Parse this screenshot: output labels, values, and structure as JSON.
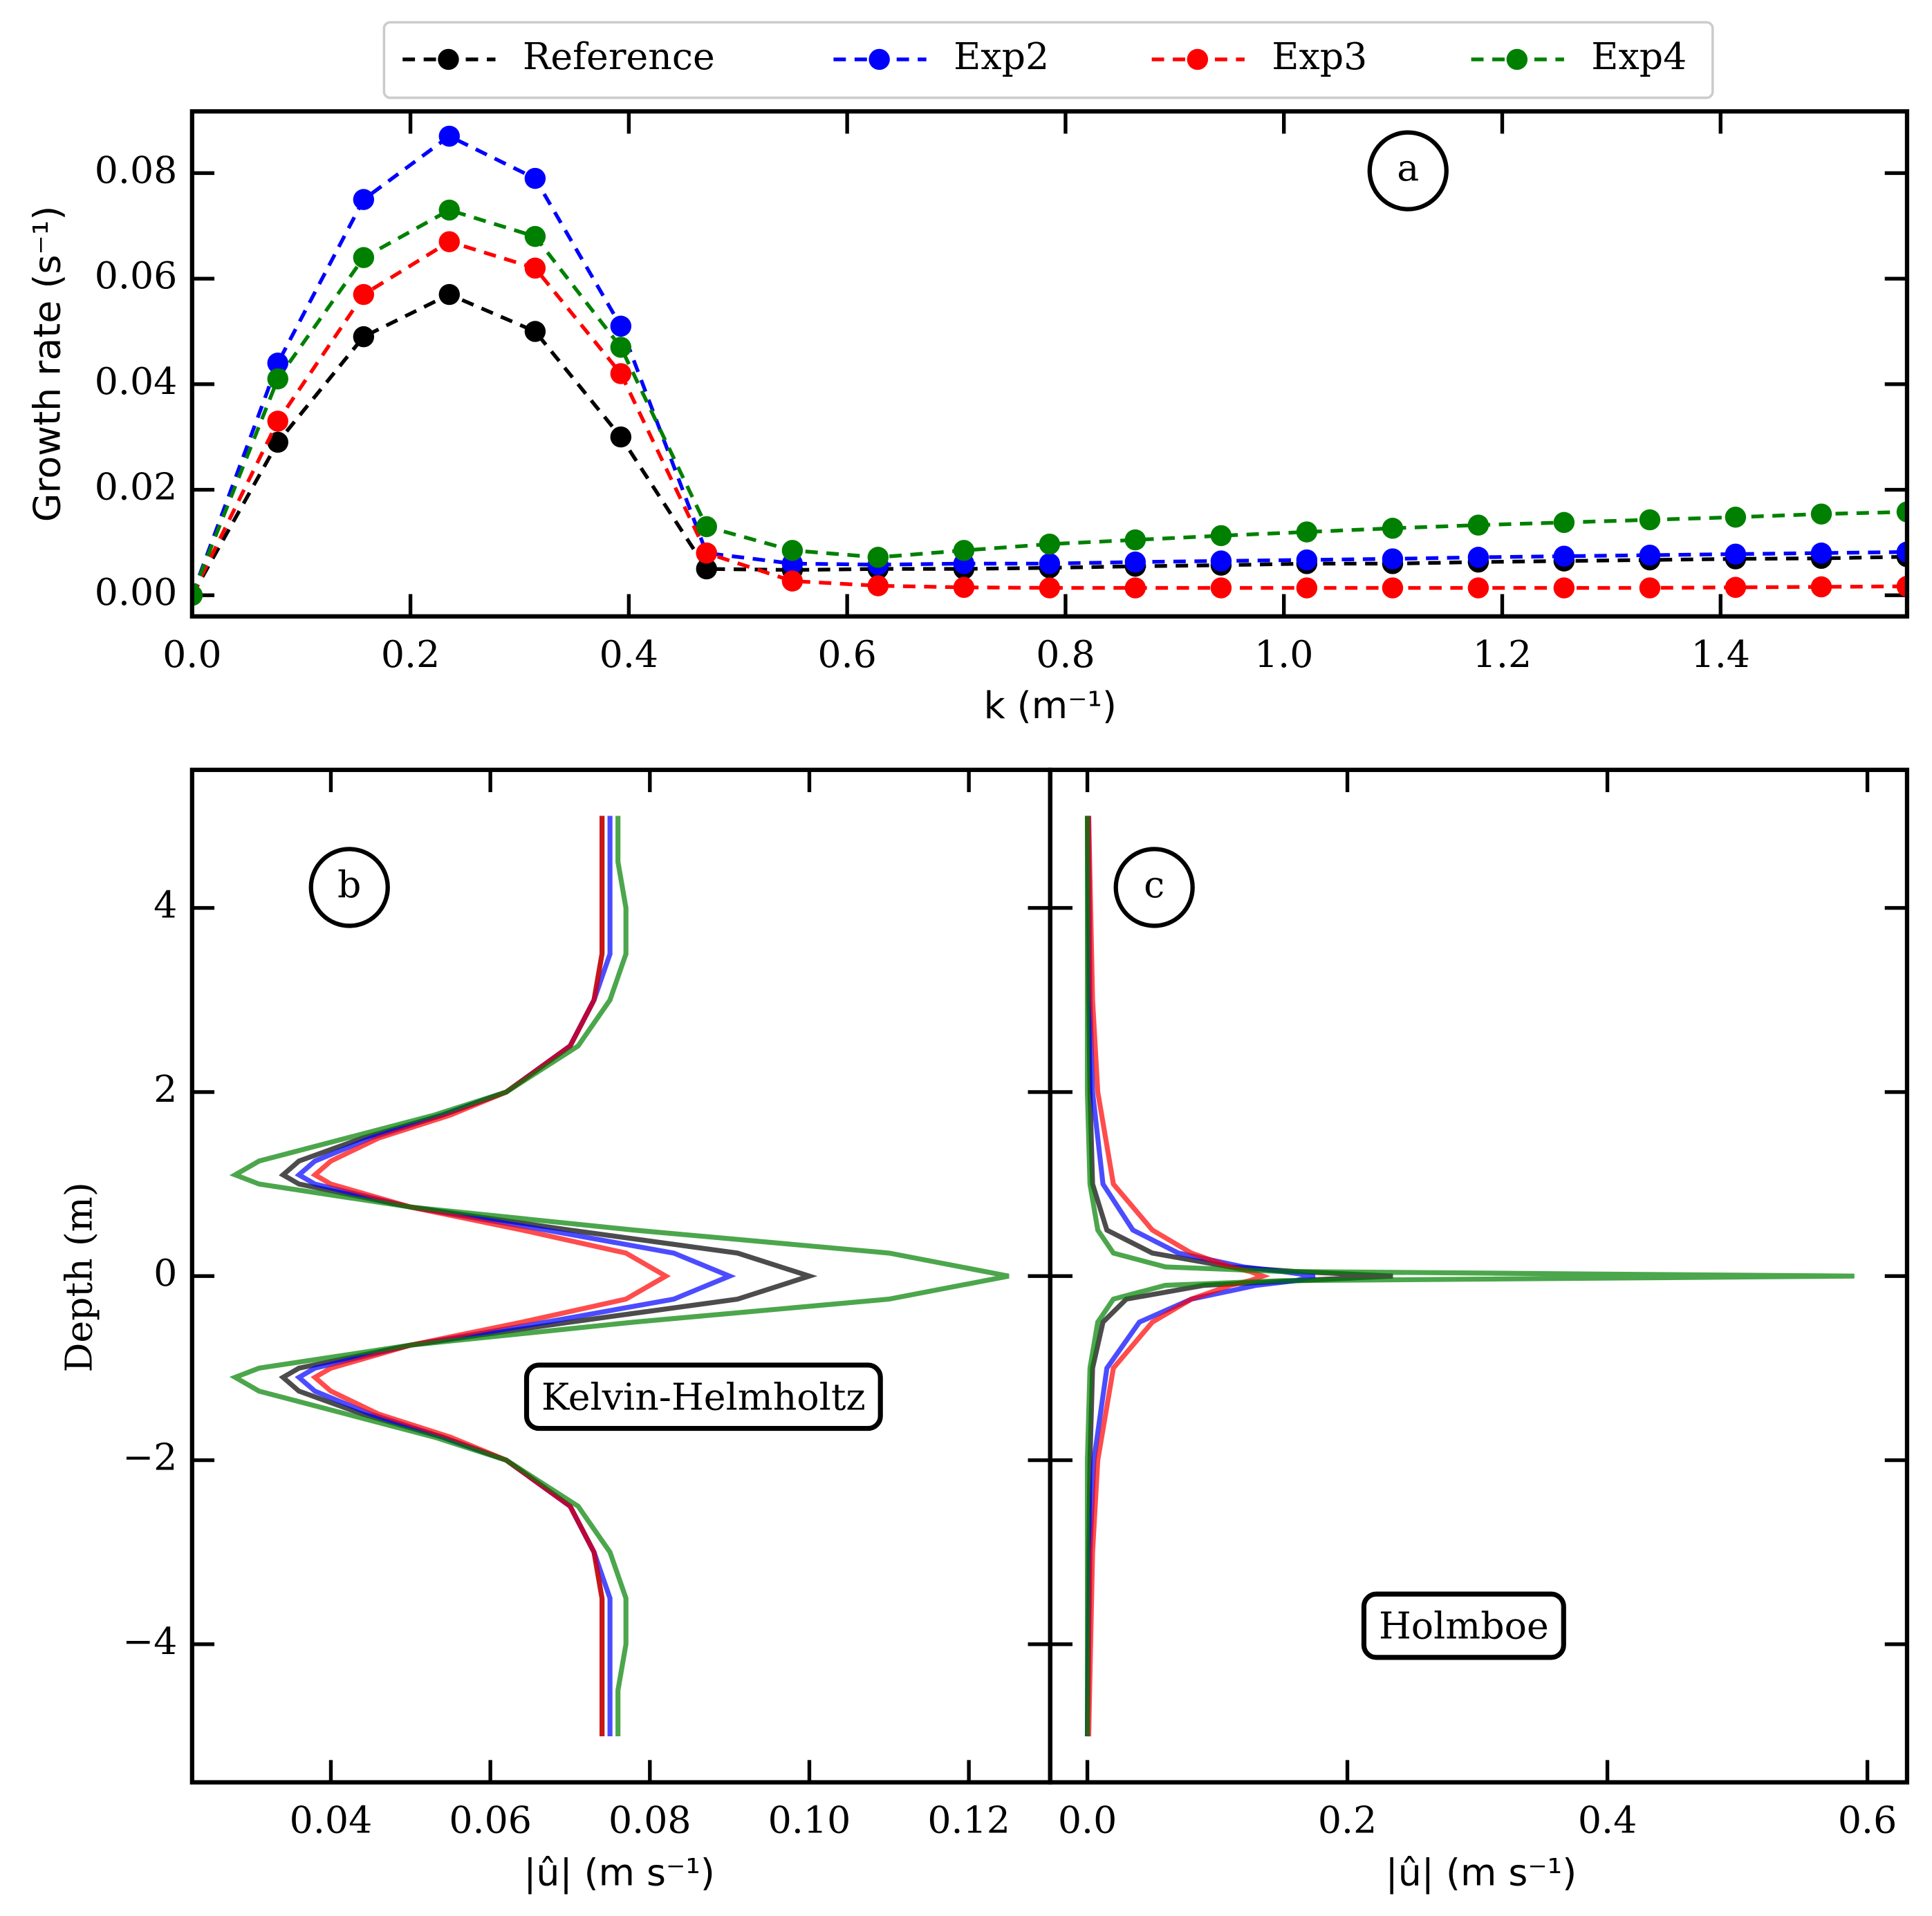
{
  "chart_data": [
    {
      "type": "line",
      "linestyle": "dashed",
      "markers": true,
      "ylabel": "Growth rate (s⁻¹)",
      "xlabel": "k (m⁻¹)",
      "annotations": [
        "a"
      ],
      "legend": "top outside",
      "x": [
        0,
        0.0785,
        0.1571,
        0.2356,
        0.3142,
        0.3927,
        0.4712,
        0.5498,
        0.6283,
        0.7069,
        0.7854,
        0.8639,
        0.9425,
        1.021,
        1.0996,
        1.1781,
        1.2566,
        1.3352,
        1.4137,
        1.4923,
        1.5708
      ],
      "xlim": [
        0,
        1.5708
      ],
      "xticks": [
        {
          "value": 0,
          "label": "0.0"
        },
        0.2,
        0.4,
        0.6,
        0.8,
        {
          "value": 1,
          "label": "1.0"
        },
        1.2,
        1.4
      ],
      "ylim": [
        -0.004,
        0.0917
      ],
      "yticks": [
        {
          "value": 0,
          "label": "0.00"
        },
        {
          "value": 0.02,
          "label": "0.02"
        },
        {
          "value": 0.04,
          "label": "0.04"
        },
        {
          "value": 0.06,
          "label": "0.06"
        },
        {
          "value": 0.08,
          "label": "0.08"
        }
      ],
      "series": [
        {
          "name": "Reference",
          "color": "#000000",
          "values": [
            0,
            0.029,
            0.049,
            0.057,
            0.05,
            0.03,
            0.005,
            0.0048,
            0.005,
            0.005,
            0.0052,
            0.0055,
            0.0057,
            0.006,
            0.006,
            0.0063,
            0.0065,
            0.0067,
            0.0069,
            0.007,
            0.0073
          ]
        },
        {
          "name": "Exp2",
          "color": "#0000ff",
          "values": [
            0,
            0.044,
            0.075,
            0.087,
            0.079,
            0.051,
            0.008,
            0.006,
            0.0058,
            0.006,
            0.006,
            0.0063,
            0.0065,
            0.0067,
            0.0069,
            0.0072,
            0.0074,
            0.0076,
            0.0078,
            0.008,
            0.0082
          ]
        },
        {
          "name": "Exp3",
          "color": "#ff0000",
          "values": [
            0,
            0.033,
            0.057,
            0.067,
            0.062,
            0.042,
            0.008,
            0.0027,
            0.0018,
            0.0015,
            0.0014,
            0.0014,
            0.0014,
            0.0014,
            0.0014,
            0.0014,
            0.0014,
            0.0014,
            0.0015,
            0.0016,
            0.0017
          ]
        },
        {
          "name": "Exp4",
          "color": "#008000",
          "values": [
            0,
            0.041,
            0.064,
            0.073,
            0.068,
            0.047,
            0.013,
            0.0085,
            0.0072,
            0.0085,
            0.0097,
            0.0105,
            0.0113,
            0.012,
            0.0127,
            0.0133,
            0.0138,
            0.0143,
            0.0148,
            0.0154,
            0.0158
          ]
        }
      ]
    },
    {
      "type": "line",
      "linestyle": "solid",
      "markers": false,
      "ylabel": "Depth (m)",
      "xlabel": "|û| (m s⁻¹)",
      "annotations": [
        "b",
        "Kelvin-Helmholtz"
      ],
      "y": [
        -5,
        -4.5,
        -4,
        -3.5,
        -3,
        -2.5,
        -2,
        -1.75,
        -1.5,
        -1.25,
        -1.1,
        -1,
        -0.75,
        -0.5,
        -0.25,
        0,
        0.25,
        0.5,
        0.75,
        1,
        1.1,
        1.25,
        1.5,
        1.75,
        2,
        2.5,
        3,
        3.5,
        4,
        4.5,
        5
      ],
      "xlim": [
        0.0226,
        0.1302
      ],
      "xticks": [
        0.04,
        0.06,
        0.08,
        {
          "value": 0.1,
          "label": "0.10"
        },
        0.12
      ],
      "ylim": [
        -5.5,
        5.5
      ],
      "yticks": [
        {
          "value": -4,
          "label": "−4"
        },
        {
          "value": -2,
          "label": "−2"
        },
        0,
        2,
        4
      ],
      "series": [
        {
          "color": "#000000",
          "values": [
            0.074,
            0.074,
            0.074,
            0.074,
            0.073,
            0.07,
            0.062,
            0.054,
            0.044,
            0.036,
            0.034,
            0.036,
            0.05,
            0.07,
            0.091,
            0.1,
            0.091,
            0.07,
            0.05,
            0.036,
            0.034,
            0.036,
            0.044,
            0.054,
            0.062,
            0.07,
            0.073,
            0.074,
            0.074,
            0.074,
            0.074
          ]
        },
        {
          "color": "#0000ff",
          "values": [
            0.075,
            0.075,
            0.075,
            0.075,
            0.073,
            0.07,
            0.062,
            0.054,
            0.045,
            0.038,
            0.036,
            0.038,
            0.05,
            0.067,
            0.083,
            0.09,
            0.083,
            0.067,
            0.05,
            0.038,
            0.036,
            0.038,
            0.045,
            0.054,
            0.062,
            0.07,
            0.073,
            0.075,
            0.075,
            0.075,
            0.075
          ]
        },
        {
          "color": "#ff0000",
          "values": [
            0.074,
            0.074,
            0.074,
            0.074,
            0.073,
            0.07,
            0.062,
            0.055,
            0.046,
            0.04,
            0.038,
            0.04,
            0.05,
            0.064,
            0.077,
            0.082,
            0.077,
            0.064,
            0.05,
            0.04,
            0.038,
            0.04,
            0.046,
            0.055,
            0.062,
            0.07,
            0.073,
            0.074,
            0.074,
            0.074,
            0.074
          ]
        },
        {
          "color": "#008000",
          "values": [
            0.076,
            0.076,
            0.077,
            0.077,
            0.075,
            0.071,
            0.062,
            0.053,
            0.042,
            0.031,
            0.028,
            0.031,
            0.05,
            0.078,
            0.11,
            0.125,
            0.11,
            0.078,
            0.05,
            0.031,
            0.028,
            0.031,
            0.042,
            0.053,
            0.062,
            0.071,
            0.075,
            0.077,
            0.077,
            0.076,
            0.076
          ]
        }
      ]
    },
    {
      "type": "line",
      "linestyle": "solid",
      "markers": false,
      "xlabel": "|û| (m s⁻¹)",
      "annotations": [
        "c",
        "Holmboe"
      ],
      "y": [
        -5,
        -3,
        -2,
        -1,
        -0.5,
        -0.25,
        -0.1,
        -0.05,
        0,
        0.05,
        0.1,
        0.25,
        0.5,
        1,
        2,
        3,
        5
      ],
      "xlim": [
        -0.0286,
        0.6305
      ],
      "xticks": [
        {
          "value": 0,
          "label": "0.0"
        },
        0.2,
        0.4,
        0.6
      ],
      "ylim": [
        -5.5,
        5.5
      ],
      "series": [
        {
          "color": "#000000",
          "values": [
            0,
            0.001,
            0.002,
            0.004,
            0.012,
            0.03,
            0.09,
            0.16,
            0.235,
            0.16,
            0.11,
            0.05,
            0.015,
            0.004,
            0.002,
            0.001,
            0
          ]
        },
        {
          "color": "#0000ff",
          "values": [
            0,
            0.002,
            0.005,
            0.015,
            0.04,
            0.08,
            0.13,
            0.16,
            0.175,
            0.15,
            0.12,
            0.07,
            0.035,
            0.012,
            0.004,
            0.002,
            0.001
          ]
        },
        {
          "color": "#ff0000",
          "values": [
            0.001,
            0.004,
            0.008,
            0.02,
            0.05,
            0.08,
            0.11,
            0.125,
            0.135,
            0.125,
            0.11,
            0.08,
            0.05,
            0.02,
            0.008,
            0.004,
            0.001
          ]
        },
        {
          "color": "#008000",
          "values": [
            0,
            0,
            0,
            0.002,
            0.008,
            0.02,
            0.06,
            0.15,
            0.59,
            0.15,
            0.06,
            0.02,
            0.008,
            0.002,
            0,
            0,
            0
          ]
        }
      ]
    }
  ]
}
